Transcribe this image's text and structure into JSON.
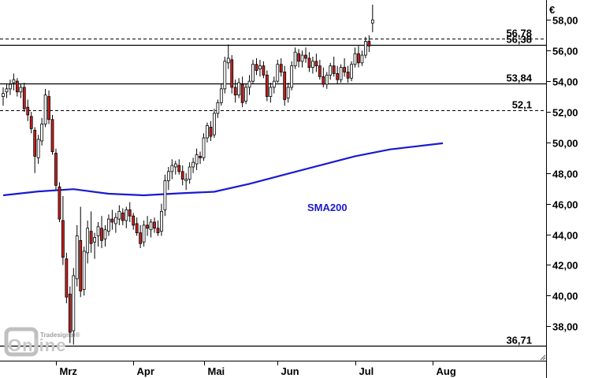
{
  "chart_data": {
    "type": "candlestick",
    "currency": "€",
    "y_ticks": [
      "38,00",
      "40,00",
      "42,00",
      "44,00",
      "46,00",
      "48,00",
      "50,00",
      "52,00",
      "54,00",
      "56,00",
      "58,00"
    ],
    "y_tick_values": [
      38,
      40,
      42,
      44,
      46,
      48,
      50,
      52,
      54,
      56,
      58
    ],
    "ylim": [
      35.75,
      59.2
    ],
    "x_months": [
      {
        "label": "Mrz",
        "index": 15
      },
      {
        "label": "Apr",
        "index": 37
      },
      {
        "label": "Mai",
        "index": 57
      },
      {
        "label": "Jun",
        "index": 78
      },
      {
        "label": "Jul",
        "index": 100
      },
      {
        "label": "Aug",
        "index": 122
      }
    ],
    "levels": [
      {
        "label": "56,78",
        "value": 56.78,
        "style": "dashed"
      },
      {
        "label": "56,38",
        "value": 56.38,
        "style": "solid"
      },
      {
        "label": "53,84",
        "value": 53.84,
        "style": "solid"
      },
      {
        "label": "52,1",
        "value": 52.1,
        "style": "dashed"
      },
      {
        "label": "36,71",
        "value": 36.71,
        "style": "solid"
      }
    ],
    "sma_label": "SMA200",
    "sma": [
      [
        0,
        46.55
      ],
      [
        10,
        46.8
      ],
      [
        20,
        46.95
      ],
      [
        30,
        46.65
      ],
      [
        40,
        46.55
      ],
      [
        50,
        46.68
      ],
      [
        60,
        46.78
      ],
      [
        70,
        47.3
      ],
      [
        80,
        47.9
      ],
      [
        90,
        48.5
      ],
      [
        100,
        49.1
      ],
      [
        110,
        49.55
      ],
      [
        125,
        49.95
      ]
    ],
    "candles": [
      [
        53.0,
        53.6,
        52.4,
        53.2
      ],
      [
        53.3,
        53.8,
        52.9,
        53.5
      ],
      [
        53.5,
        54.1,
        53.1,
        53.8
      ],
      [
        53.9,
        54.5,
        53.4,
        54.1
      ],
      [
        54.0,
        54.2,
        53.0,
        53.3
      ],
      [
        53.3,
        53.8,
        52.9,
        53.6
      ],
      [
        53.6,
        53.9,
        52.0,
        52.2
      ],
      [
        52.3,
        52.8,
        51.4,
        51.8
      ],
      [
        51.7,
        52.0,
        50.6,
        50.9
      ],
      [
        50.8,
        51.0,
        48.0,
        49.1
      ],
      [
        49.0,
        50.5,
        48.6,
        50.2
      ],
      [
        50.1,
        51.6,
        49.8,
        51.2
      ],
      [
        51.2,
        53.5,
        51.0,
        53.1
      ],
      [
        53.0,
        53.4,
        51.2,
        51.5
      ],
      [
        51.5,
        51.8,
        49.2,
        49.4
      ],
      [
        49.3,
        49.6,
        46.9,
        47.2
      ],
      [
        47.1,
        47.4,
        44.8,
        45.0
      ],
      [
        44.9,
        46.5,
        42.0,
        42.5
      ],
      [
        42.4,
        42.8,
        39.5,
        39.9
      ],
      [
        40.1,
        40.6,
        36.9,
        37.6
      ],
      [
        37.7,
        41.8,
        36.8,
        41.3
      ],
      [
        41.1,
        44.6,
        40.6,
        43.9
      ],
      [
        43.6,
        45.8,
        39.9,
        40.3
      ],
      [
        40.4,
        43.2,
        40.0,
        42.9
      ],
      [
        42.8,
        44.9,
        42.1,
        44.4
      ],
      [
        44.2,
        45.5,
        42.8,
        43.4
      ],
      [
        43.5,
        44.1,
        42.4,
        43.8
      ],
      [
        43.9,
        44.8,
        43.2,
        44.5
      ],
      [
        44.4,
        45.2,
        43.1,
        43.6
      ],
      [
        43.7,
        44.6,
        43.2,
        44.3
      ],
      [
        44.2,
        45.3,
        43.9,
        45.0
      ],
      [
        45.0,
        45.6,
        44.3,
        44.8
      ],
      [
        44.7,
        45.4,
        44.1,
        45.1
      ],
      [
        45.0,
        45.9,
        44.6,
        45.5
      ],
      [
        45.4,
        45.7,
        44.6,
        44.9
      ],
      [
        44.9,
        45.8,
        44.4,
        45.6
      ],
      [
        45.6,
        46.1,
        44.8,
        45.2
      ],
      [
        45.2,
        45.4,
        44.3,
        44.6
      ],
      [
        44.7,
        45.1,
        43.9,
        44.1
      ],
      [
        44.1,
        44.6,
        43.1,
        43.4
      ],
      [
        43.5,
        44.9,
        43.2,
        44.6
      ],
      [
        44.6,
        45.2,
        43.9,
        44.4
      ],
      [
        44.3,
        45.0,
        43.8,
        44.8
      ],
      [
        44.8,
        45.1,
        44.1,
        44.4
      ],
      [
        44.4,
        44.9,
        43.9,
        44.1
      ],
      [
        44.2,
        46.0,
        43.9,
        45.5
      ],
      [
        45.6,
        47.9,
        45.2,
        47.5
      ],
      [
        47.5,
        48.4,
        46.9,
        48.1
      ],
      [
        48.1,
        48.9,
        47.6,
        48.5
      ],
      [
        48.4,
        48.8,
        47.9,
        48.6
      ],
      [
        48.5,
        48.9,
        47.9,
        48.1
      ],
      [
        48.1,
        48.5,
        47.2,
        47.6
      ],
      [
        47.5,
        48.0,
        46.9,
        47.6
      ],
      [
        47.6,
        48.7,
        47.3,
        48.4
      ],
      [
        48.4,
        49.0,
        48.0,
        48.7
      ],
      [
        48.6,
        49.6,
        48.2,
        49.2
      ],
      [
        49.1,
        49.4,
        48.6,
        49.0
      ],
      [
        49.0,
        50.6,
        48.8,
        50.3
      ],
      [
        50.3,
        51.3,
        50.0,
        51.1
      ],
      [
        51.0,
        51.4,
        50.1,
        50.4
      ],
      [
        50.5,
        52.2,
        50.3,
        51.9
      ],
      [
        51.9,
        52.8,
        51.6,
        52.6
      ],
      [
        52.6,
        53.8,
        52.4,
        53.5
      ],
      [
        53.5,
        55.6,
        53.2,
        55.3
      ],
      [
        55.2,
        56.4,
        54.8,
        55.5
      ],
      [
        55.4,
        55.7,
        53.2,
        53.6
      ],
      [
        53.6,
        54.1,
        52.6,
        53.1
      ],
      [
        53.1,
        54.2,
        52.9,
        53.9
      ],
      [
        53.8,
        54.3,
        52.3,
        52.6
      ],
      [
        52.7,
        53.8,
        52.5,
        53.6
      ],
      [
        53.6,
        54.4,
        53.1,
        54.0
      ],
      [
        54.0,
        55.4,
        53.8,
        55.1
      ],
      [
        55.1,
        55.5,
        54.4,
        54.7
      ],
      [
        54.8,
        55.4,
        54.3,
        55.0
      ],
      [
        55.0,
        55.3,
        54.2,
        54.4
      ],
      [
        54.4,
        54.7,
        52.7,
        53.0
      ],
      [
        53.0,
        53.9,
        52.6,
        53.6
      ],
      [
        53.6,
        54.3,
        53.2,
        54.0
      ],
      [
        54.0,
        55.4,
        53.9,
        55.1
      ],
      [
        55.1,
        55.5,
        54.3,
        54.6
      ],
      [
        54.6,
        55.0,
        52.4,
        52.8
      ],
      [
        52.9,
        53.9,
        52.6,
        53.6
      ],
      [
        53.6,
        55.3,
        53.4,
        55.0
      ],
      [
        55.0,
        56.2,
        54.8,
        55.9
      ],
      [
        55.8,
        56.1,
        54.9,
        55.3
      ],
      [
        55.3,
        56.0,
        54.9,
        55.7
      ],
      [
        55.7,
        56.2,
        55.2,
        55.5
      ],
      [
        55.5,
        55.9,
        54.6,
        54.9
      ],
      [
        54.9,
        55.6,
        54.5,
        55.3
      ],
      [
        55.3,
        55.8,
        54.6,
        55.0
      ],
      [
        55.0,
        55.4,
        54.1,
        54.3
      ],
      [
        54.3,
        54.9,
        53.6,
        53.8
      ],
      [
        53.8,
        54.6,
        53.5,
        54.4
      ],
      [
        54.4,
        55.2,
        54.1,
        55.0
      ],
      [
        55.0,
        55.6,
        54.3,
        54.5
      ],
      [
        54.5,
        55.0,
        53.8,
        54.1
      ],
      [
        54.1,
        55.1,
        53.9,
        54.9
      ],
      [
        54.9,
        55.5,
        54.3,
        54.6
      ],
      [
        54.6,
        55.0,
        53.9,
        54.2
      ],
      [
        54.2,
        55.3,
        54.0,
        55.1
      ],
      [
        55.1,
        56.2,
        54.9,
        55.8
      ],
      [
        55.8,
        56.3,
        54.9,
        55.2
      ],
      [
        55.2,
        56.0,
        55.0,
        55.7
      ],
      [
        55.7,
        56.9,
        55.5,
        56.6
      ],
      [
        56.6,
        57.0,
        55.9,
        56.3
      ],
      [
        57.8,
        59.0,
        57.2,
        58.0
      ]
    ]
  },
  "watermark": {
    "brand": "Tradesignal",
    "reg": "®",
    "word": "Online"
  }
}
